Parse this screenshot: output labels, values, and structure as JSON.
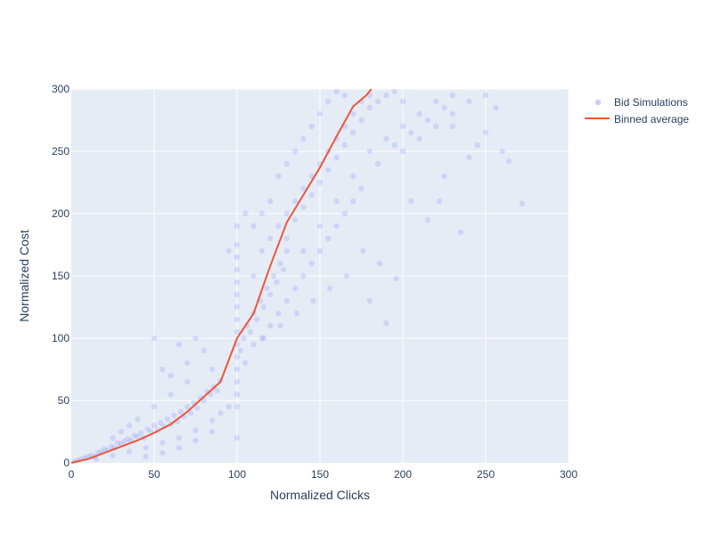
{
  "chart_data": {
    "type": "scatter",
    "xlabel": "Normalized Clicks",
    "ylabel": "Normalized Cost",
    "xlim": [
      0,
      300
    ],
    "ylim": [
      0,
      300
    ],
    "xticks": [
      "0",
      "50",
      "100",
      "150",
      "200",
      "250",
      "300"
    ],
    "yticks": [
      "0",
      "50",
      "100",
      "150",
      "200",
      "250",
      "300"
    ],
    "grid": true,
    "legend_position": "top-right",
    "series": [
      {
        "name": "Bid Simulations",
        "kind": "scatter",
        "color": "#636efa",
        "points": [
          [
            2,
            1
          ],
          [
            4,
            2
          ],
          [
            6,
            3
          ],
          [
            8,
            4
          ],
          [
            10,
            5
          ],
          [
            12,
            6
          ],
          [
            14,
            5
          ],
          [
            16,
            8
          ],
          [
            18,
            9
          ],
          [
            20,
            11
          ],
          [
            22,
            10
          ],
          [
            24,
            13
          ],
          [
            26,
            12
          ],
          [
            28,
            16
          ],
          [
            30,
            15
          ],
          [
            32,
            17
          ],
          [
            34,
            19
          ],
          [
            36,
            18
          ],
          [
            38,
            22
          ],
          [
            40,
            21
          ],
          [
            42,
            24
          ],
          [
            44,
            20
          ],
          [
            46,
            27
          ],
          [
            48,
            25
          ],
          [
            50,
            30
          ],
          [
            52,
            26
          ],
          [
            54,
            32
          ],
          [
            56,
            29
          ],
          [
            58,
            35
          ],
          [
            60,
            31
          ],
          [
            62,
            38
          ],
          [
            64,
            33
          ],
          [
            66,
            41
          ],
          [
            68,
            37
          ],
          [
            70,
            45
          ],
          [
            72,
            40
          ],
          [
            74,
            48
          ],
          [
            76,
            44
          ],
          [
            78,
            52
          ],
          [
            80,
            50
          ],
          [
            82,
            57
          ],
          [
            84,
            55
          ],
          [
            86,
            61
          ],
          [
            88,
            58
          ],
          [
            90,
            66
          ],
          [
            15,
            3
          ],
          [
            25,
            6
          ],
          [
            35,
            9
          ],
          [
            45,
            12
          ],
          [
            55,
            16
          ],
          [
            65,
            20
          ],
          [
            75,
            26
          ],
          [
            85,
            34
          ],
          [
            95,
            45
          ],
          [
            30,
            25
          ],
          [
            40,
            35
          ],
          [
            50,
            45
          ],
          [
            60,
            55
          ],
          [
            70,
            65
          ],
          [
            45,
            5
          ],
          [
            55,
            8
          ],
          [
            65,
            12
          ],
          [
            75,
            18
          ],
          [
            85,
            25
          ],
          [
            90,
            40
          ],
          [
            25,
            20
          ],
          [
            35,
            30
          ],
          [
            60,
            70
          ],
          [
            70,
            80
          ],
          [
            80,
            90
          ],
          [
            50,
            100
          ],
          [
            55,
            75
          ],
          [
            65,
            95
          ],
          [
            75,
            100
          ],
          [
            85,
            75
          ],
          [
            100,
            20
          ],
          [
            100,
            45
          ],
          [
            100,
            55
          ],
          [
            100,
            65
          ],
          [
            100,
            75
          ],
          [
            100,
            85
          ],
          [
            100,
            95
          ],
          [
            100,
            105
          ],
          [
            100,
            115
          ],
          [
            100,
            125
          ],
          [
            100,
            135
          ],
          [
            100,
            145
          ],
          [
            100,
            155
          ],
          [
            100,
            165
          ],
          [
            100,
            175
          ],
          [
            102,
            90
          ],
          [
            104,
            100
          ],
          [
            106,
            110
          ],
          [
            108,
            105
          ],
          [
            110,
            120
          ],
          [
            112,
            115
          ],
          [
            114,
            130
          ],
          [
            116,
            125
          ],
          [
            118,
            140
          ],
          [
            120,
            135
          ],
          [
            122,
            150
          ],
          [
            124,
            145
          ],
          [
            126,
            160
          ],
          [
            128,
            155
          ],
          [
            130,
            170
          ],
          [
            105,
            80
          ],
          [
            110,
            95
          ],
          [
            115,
            100
          ],
          [
            120,
            110
          ],
          [
            125,
            120
          ],
          [
            130,
            130
          ],
          [
            135,
            140
          ],
          [
            140,
            150
          ],
          [
            145,
            160
          ],
          [
            150,
            170
          ],
          [
            155,
            180
          ],
          [
            160,
            190
          ],
          [
            165,
            200
          ],
          [
            170,
            210
          ],
          [
            175,
            220
          ],
          [
            110,
            150
          ],
          [
            115,
            170
          ],
          [
            120,
            180
          ],
          [
            125,
            190
          ],
          [
            130,
            200
          ],
          [
            135,
            210
          ],
          [
            140,
            220
          ],
          [
            145,
            230
          ],
          [
            150,
            240
          ],
          [
            155,
            250
          ],
          [
            160,
            260
          ],
          [
            165,
            270
          ],
          [
            170,
            280
          ],
          [
            175,
            290
          ],
          [
            180,
            295
          ],
          [
            130,
            180
          ],
          [
            135,
            195
          ],
          [
            140,
            205
          ],
          [
            145,
            215
          ],
          [
            150,
            225
          ],
          [
            155,
            235
          ],
          [
            160,
            245
          ],
          [
            165,
            255
          ],
          [
            170,
            265
          ],
          [
            175,
            275
          ],
          [
            180,
            285
          ],
          [
            185,
            290
          ],
          [
            190,
            295
          ],
          [
            195,
            298
          ],
          [
            200,
            290
          ],
          [
            140,
            170
          ],
          [
            150,
            190
          ],
          [
            160,
            210
          ],
          [
            170,
            230
          ],
          [
            180,
            250
          ],
          [
            190,
            260
          ],
          [
            200,
            270
          ],
          [
            210,
            280
          ],
          [
            220,
            290
          ],
          [
            230,
            295
          ],
          [
            185,
            240
          ],
          [
            195,
            255
          ],
          [
            205,
            265
          ],
          [
            215,
            275
          ],
          [
            225,
            285
          ],
          [
            120,
            210
          ],
          [
            125,
            230
          ],
          [
            130,
            240
          ],
          [
            135,
            250
          ],
          [
            140,
            260
          ],
          [
            145,
            270
          ],
          [
            150,
            280
          ],
          [
            155,
            290
          ],
          [
            160,
            298
          ],
          [
            165,
            295
          ],
          [
            110,
            190
          ],
          [
            115,
            200
          ],
          [
            100,
            190
          ],
          [
            105,
            200
          ],
          [
            95,
            170
          ],
          [
            200,
            250
          ],
          [
            210,
            260
          ],
          [
            220,
            270
          ],
          [
            230,
            280
          ],
          [
            240,
            290
          ],
          [
            250,
            295
          ],
          [
            230,
            270
          ],
          [
            240,
            245
          ],
          [
            250,
            265
          ],
          [
            260,
            250
          ],
          [
            264,
            242
          ],
          [
            272,
            208
          ],
          [
            196,
            148
          ],
          [
            190,
            112
          ],
          [
            180,
            130
          ],
          [
            205,
            210
          ],
          [
            215,
            195
          ],
          [
            225,
            230
          ],
          [
            235,
            185
          ],
          [
            222,
            210
          ],
          [
            245,
            255
          ],
          [
            256,
            285
          ],
          [
            186,
            160
          ],
          [
            176,
            170
          ],
          [
            166,
            150
          ],
          [
            156,
            140
          ],
          [
            146,
            130
          ],
          [
            136,
            120
          ],
          [
            126,
            110
          ],
          [
            116,
            100
          ]
        ]
      },
      {
        "name": "Binned average",
        "kind": "line",
        "color": "#ef553b",
        "points": [
          [
            0,
            0
          ],
          [
            10,
            3
          ],
          [
            20,
            8
          ],
          [
            30,
            13
          ],
          [
            40,
            18
          ],
          [
            50,
            24
          ],
          [
            60,
            31
          ],
          [
            70,
            41
          ],
          [
            80,
            53
          ],
          [
            90,
            65
          ],
          [
            100,
            100
          ],
          [
            110,
            120
          ],
          [
            120,
            158
          ],
          [
            130,
            193
          ],
          [
            140,
            215
          ],
          [
            150,
            237
          ],
          [
            160,
            262
          ],
          [
            170,
            286
          ],
          [
            178,
            295
          ],
          [
            181,
            300
          ]
        ]
      }
    ]
  }
}
